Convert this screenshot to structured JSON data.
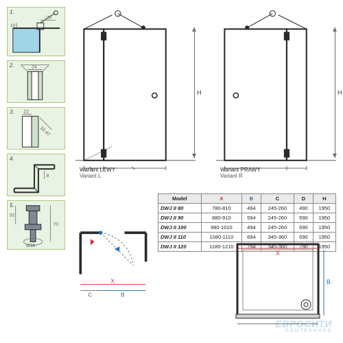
{
  "details": {
    "d1": {
      "num": "1.",
      "dim_a": "20",
      "dim_b": "10"
    },
    "d2": {
      "num": "2.",
      "dim": "24"
    },
    "d3": {
      "num": "3.",
      "dim_a": "22",
      "dim_b": "32-47"
    },
    "d4": {
      "num": "4.",
      "dim": "8"
    },
    "d5": {
      "num": "5.",
      "dia": "Ø38",
      "h": "32",
      "r": "70"
    }
  },
  "variants": {
    "left": {
      "line1": "Wariant LEWY",
      "line2": "Variant L"
    },
    "right": {
      "line1": "Wariant PRAWY",
      "line2": "Variant R"
    },
    "H": "H"
  },
  "colors": {
    "line": "#2a2a2a",
    "thin": "#6a6a6a",
    "glass": "#7fc4d9",
    "panel_bg": "#e9f3e3",
    "panel_border": "#a9c97a",
    "red": "#d12b2b",
    "blue": "#1e6fb0",
    "table_head": "#eaeaea"
  },
  "table": {
    "columns": [
      {
        "key": "model",
        "label": "Model"
      },
      {
        "key": "x",
        "label": "X",
        "class": "x"
      },
      {
        "key": "b",
        "label": "B",
        "class": "b"
      },
      {
        "key": "c",
        "label": "C"
      },
      {
        "key": "d",
        "label": "D"
      },
      {
        "key": "h",
        "label": "H"
      }
    ],
    "rows": [
      {
        "model": "DWJ II 80",
        "x": "780-810",
        "b": "494",
        "c": "245-260",
        "d": "490",
        "h": "1950"
      },
      {
        "model": "DWJ II 90",
        "x": "880-910",
        "b": "594",
        "c": "245-260",
        "d": "590",
        "h": "1950"
      },
      {
        "model": "DWJ II 100",
        "x": "980-1010",
        "b": "494",
        "c": "245-260",
        "d": "690",
        "h": "1950"
      },
      {
        "model": "DWJ II 110",
        "x": "1080-1110",
        "b": "694",
        "c": "345-360",
        "d": "690",
        "h": "1950"
      },
      {
        "model": "DWJ II 120",
        "x": "1180-1210",
        "b": "794",
        "c": "345-360",
        "d": "790",
        "h": "1950"
      }
    ]
  },
  "plan": {
    "X": "X",
    "B": "B",
    "C": "C"
  },
  "watermark": {
    "brand": "ЕВРОСИТИ",
    "sub": "САНТЕХНИКА"
  }
}
